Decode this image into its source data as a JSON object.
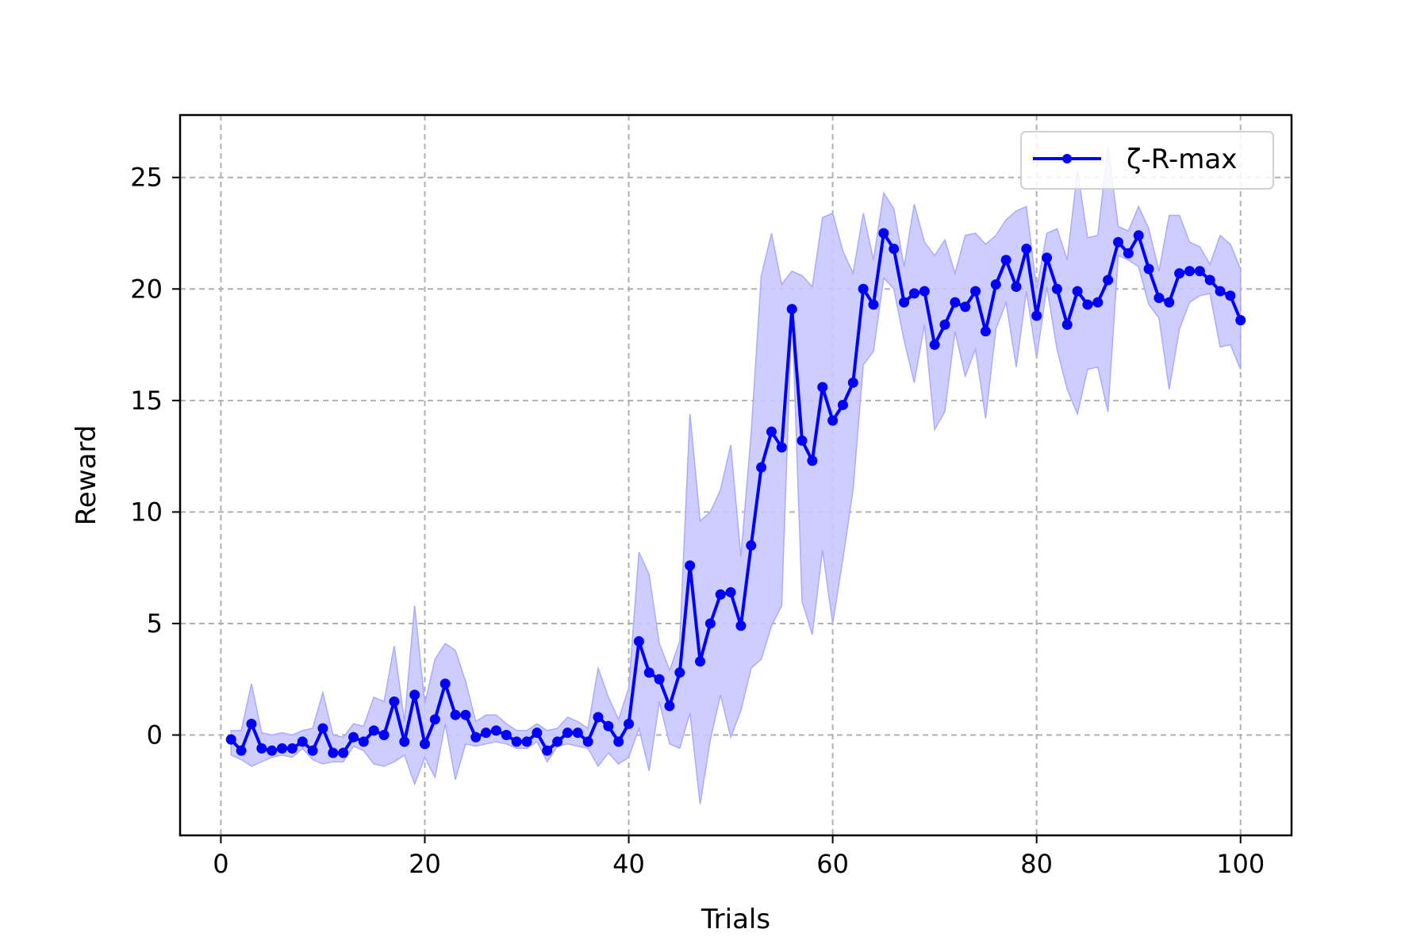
{
  "chart_data": {
    "type": "line",
    "xlabel": "Trials",
    "ylabel": "Reward",
    "xlim": [
      -4,
      105
    ],
    "ylim": [
      -4.5,
      27.8
    ],
    "xticks": [
      0,
      20,
      40,
      60,
      80,
      100
    ],
    "yticks": [
      0,
      5,
      10,
      15,
      20,
      25
    ],
    "grid": true,
    "legend_position": "top-right",
    "colors": {
      "line": "#0000ff",
      "band": "#c8c8ff",
      "band_edge": "#aaaaff",
      "grid": "#b0b0b0"
    },
    "series": [
      {
        "name": "ζ-R-max",
        "x": [
          1,
          2,
          3,
          4,
          5,
          6,
          7,
          8,
          9,
          10,
          11,
          12,
          13,
          14,
          15,
          16,
          17,
          18,
          19,
          20,
          21,
          22,
          23,
          24,
          25,
          26,
          27,
          28,
          29,
          30,
          31,
          32,
          33,
          34,
          35,
          36,
          37,
          38,
          39,
          40,
          41,
          42,
          43,
          44,
          45,
          46,
          47,
          48,
          49,
          50,
          51,
          52,
          53,
          54,
          55,
          56,
          57,
          58,
          59,
          60,
          61,
          62,
          63,
          64,
          65,
          66,
          67,
          68,
          69,
          70,
          71,
          72,
          73,
          74,
          75,
          76,
          77,
          78,
          79,
          80,
          81,
          82,
          83,
          84,
          85,
          86,
          87,
          88,
          89,
          90,
          91,
          92,
          93,
          94,
          95,
          96,
          97,
          98,
          99,
          100
        ],
        "y": [
          -0.2,
          -0.7,
          0.5,
          -0.6,
          -0.7,
          -0.6,
          -0.6,
          -0.3,
          -0.7,
          0.3,
          -0.8,
          -0.8,
          -0.1,
          -0.3,
          0.2,
          0.0,
          1.5,
          -0.3,
          1.8,
          -0.4,
          0.7,
          2.3,
          0.9,
          0.9,
          -0.1,
          0.1,
          0.2,
          0.0,
          -0.3,
          -0.3,
          0.1,
          -0.7,
          -0.3,
          0.1,
          0.1,
          -0.3,
          0.8,
          0.4,
          -0.3,
          0.5,
          4.2,
          2.8,
          2.5,
          1.3,
          2.8,
          7.6,
          3.3,
          5.0,
          6.3,
          6.4,
          4.9,
          8.5,
          12.0,
          13.6,
          12.9,
          19.1,
          13.2,
          12.3,
          15.6,
          14.1,
          14.8,
          15.8,
          20.0,
          19.3,
          22.5,
          21.8,
          19.4,
          19.8,
          19.9,
          17.5,
          18.4,
          19.4,
          19.2,
          19.9,
          18.1,
          20.2,
          21.3,
          20.1,
          21.8,
          18.8,
          21.4,
          20.0,
          18.4,
          19.9,
          19.3,
          19.4,
          20.4,
          22.1,
          21.6,
          22.4,
          20.9,
          19.6,
          19.4,
          20.7,
          20.8,
          20.8,
          20.4,
          19.9,
          19.7,
          18.6
        ],
        "upper": [
          0.2,
          0.2,
          2.3,
          0.1,
          0.0,
          0.1,
          0.0,
          0.2,
          0.3,
          1.9,
          0.0,
          -0.1,
          0.5,
          0.4,
          1.7,
          1.5,
          4.0,
          0.6,
          5.8,
          1.4,
          3.4,
          4.1,
          3.8,
          2.4,
          0.6,
          0.9,
          0.9,
          0.5,
          0.2,
          0.2,
          0.5,
          0.2,
          0.3,
          0.8,
          0.6,
          0.3,
          3.0,
          1.7,
          0.7,
          2.1,
          8.2,
          7.2,
          4.1,
          2.9,
          4.2,
          14.4,
          9.6,
          10.0,
          11.0,
          13.0,
          8.0,
          13.5,
          20.6,
          22.5,
          20.2,
          20.8,
          20.6,
          20.1,
          23.2,
          23.4,
          21.7,
          20.7,
          23.4,
          21.3,
          24.3,
          23.6,
          21.0,
          23.8,
          22.1,
          21.5,
          22.2,
          20.7,
          22.4,
          22.5,
          22.0,
          22.4,
          23.1,
          23.5,
          23.7,
          20.0,
          22.5,
          22.7,
          21.3,
          25.3,
          22.3,
          22.4,
          26.4,
          22.8,
          22.6,
          23.7,
          22.7,
          20.8,
          23.3,
          23.3,
          22.1,
          21.9,
          21.1,
          22.4,
          22.0,
          20.9
        ],
        "lower": [
          -0.9,
          -1.1,
          -1.4,
          -1.2,
          -1.0,
          -0.9,
          -1.0,
          -0.6,
          -1.1,
          -1.3,
          -1.2,
          -1.2,
          -0.5,
          -0.7,
          -1.3,
          -1.4,
          -1.2,
          -0.9,
          -2.2,
          -1.0,
          -1.9,
          0.5,
          -2.0,
          -0.4,
          -0.5,
          -0.4,
          -0.3,
          -0.4,
          -0.6,
          -0.6,
          -0.3,
          -1.2,
          -0.5,
          -0.4,
          -0.5,
          -0.6,
          -1.4,
          -0.8,
          -1.3,
          -1.0,
          0.3,
          -1.6,
          1.5,
          -0.4,
          -0.6,
          1.0,
          -3.1,
          -0.2,
          1.8,
          -0.1,
          1.1,
          3.0,
          3.4,
          4.9,
          5.8,
          19.0,
          6.0,
          4.5,
          8.3,
          5.0,
          7.9,
          11.0,
          16.6,
          17.2,
          20.5,
          20.0,
          17.7,
          15.8,
          18.4,
          13.7,
          14.5,
          18.1,
          16.1,
          17.3,
          14.2,
          18.2,
          19.4,
          16.5,
          19.9,
          16.9,
          20.1,
          17.3,
          15.5,
          14.4,
          16.4,
          16.5,
          14.5,
          21.5,
          21.3,
          21.0,
          19.3,
          18.7,
          15.5,
          18.2,
          19.4,
          19.7,
          19.8,
          17.4,
          17.5,
          16.4
        ]
      }
    ]
  }
}
